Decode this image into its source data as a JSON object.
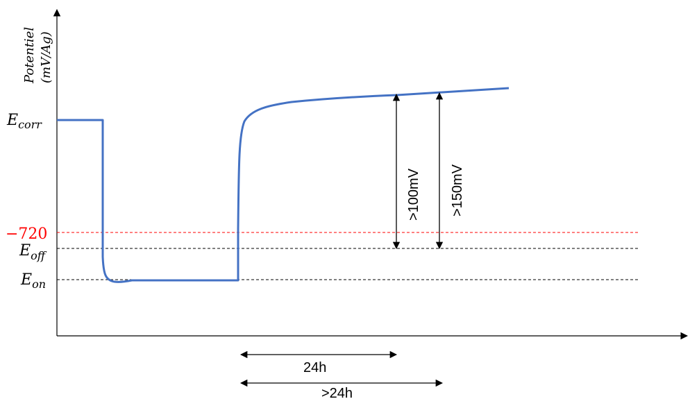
{
  "y_axis_label": {
    "line1": "Potentiel",
    "line2": "(mV/Ag)"
  },
  "levels": {
    "ecorr": {
      "base": "E",
      "sub": "corr"
    },
    "minus720": {
      "text": "−720",
      "color": "#ff0000"
    },
    "eoff": {
      "base": "E",
      "sub": "off"
    },
    "eon": {
      "base": "E",
      "sub": "on"
    }
  },
  "annotations": {
    "v100": ">100mV",
    "v150": ">150mV",
    "t24": "24h",
    "t24plus": ">24h"
  },
  "colors": {
    "curve": "#4472c4",
    "axis": "#000000",
    "ref_red": "#ff0000",
    "ref_black": "#000000"
  },
  "icons": {
    "axis_arrow": "arrowhead",
    "dimension_arrow": "double-arrow"
  }
}
